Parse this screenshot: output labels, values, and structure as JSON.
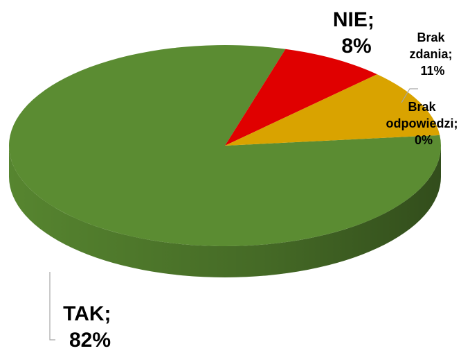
{
  "chart_data": {
    "type": "pie",
    "values": [
      82,
      8,
      11,
      0
    ],
    "value_labels": [
      "TAK; 82%",
      "NIE; 8%",
      "Brak zdania; 11%",
      "Brak odpowiedzi; 0%"
    ],
    "colors": [
      "#5b8c32",
      "#e00000",
      "#d9a300",
      "#a0a0a0"
    ]
  }
}
